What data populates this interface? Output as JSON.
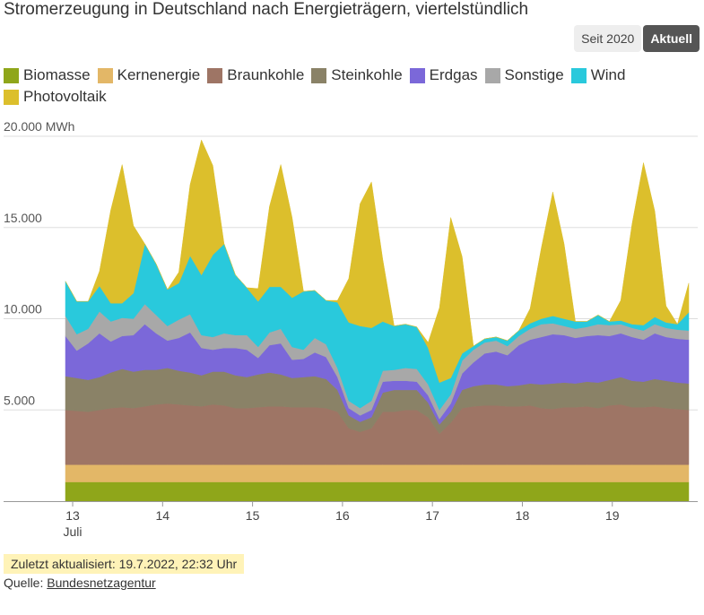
{
  "title": "Stromerzeugung in Deutschland nach Energieträgern, viertelstündlich",
  "toggle": {
    "left_label": "Seit 2020",
    "right_label": "Aktuell",
    "active": "right"
  },
  "footer": {
    "updated": "Zuletzt aktualisiert: 19.7.2022, 22:32 Uhr",
    "source_prefix": "Quelle: ",
    "source_link": "Bundesnetzagentur"
  },
  "chart_data": {
    "type": "area",
    "stacked": true,
    "ylabel_top": "20.000 MWh",
    "yticks": [
      {
        "value": 5000,
        "label": "5.000"
      },
      {
        "value": 10000,
        "label": "10.000"
      },
      {
        "value": 15000,
        "label": "15.000"
      },
      {
        "value": 20000,
        "label": "20.000 MWh"
      }
    ],
    "ylim": [
      0,
      20000
    ],
    "grid": true,
    "legend": "top",
    "xticks": [
      {
        "day": 13,
        "label": "13",
        "sub": "Juli"
      },
      {
        "day": 14,
        "label": "14"
      },
      {
        "day": 15,
        "label": "15"
      },
      {
        "day": 16,
        "label": "16"
      },
      {
        "day": 17,
        "label": "17"
      },
      {
        "day": 18,
        "label": "18"
      },
      {
        "day": 19,
        "label": "19"
      }
    ],
    "x_range_days": [
      12.92,
      19.85
    ],
    "x_hours": [
      0,
      3,
      6,
      9,
      12,
      15,
      18,
      21,
      24,
      27,
      30,
      33,
      36,
      39,
      42,
      45,
      48,
      51,
      54,
      57,
      60,
      63,
      66,
      69,
      72,
      75,
      78,
      81,
      84,
      87,
      90,
      93,
      96,
      99,
      102,
      105,
      108,
      111,
      114,
      117,
      120,
      123,
      126,
      129,
      132,
      135,
      138,
      141,
      144,
      147,
      150,
      153,
      156,
      159,
      162,
      165
    ],
    "series": [
      {
        "name": "Biomasse",
        "color": "#8fa61a",
        "values": [
          1050,
          1050,
          1050,
          1050,
          1050,
          1050,
          1050,
          1050,
          1050,
          1050,
          1050,
          1050,
          1050,
          1050,
          1050,
          1050,
          1050,
          1050,
          1050,
          1050,
          1050,
          1050,
          1050,
          1050,
          1050,
          1050,
          1050,
          1050,
          1050,
          1050,
          1050,
          1050,
          1050,
          1050,
          1050,
          1050,
          1050,
          1050,
          1050,
          1050,
          1050,
          1050,
          1050,
          1050,
          1050,
          1050,
          1050,
          1050,
          1050,
          1050,
          1050,
          1050,
          1050,
          1050,
          1050,
          1050
        ]
      },
      {
        "name": "Kernenergie",
        "color": "#e3b767",
        "values": [
          950,
          950,
          950,
          950,
          950,
          950,
          950,
          950,
          950,
          950,
          950,
          950,
          950,
          950,
          950,
          950,
          950,
          950,
          950,
          950,
          950,
          950,
          950,
          950,
          950,
          950,
          950,
          950,
          950,
          950,
          950,
          950,
          950,
          950,
          950,
          950,
          950,
          950,
          950,
          950,
          950,
          950,
          950,
          950,
          950,
          950,
          950,
          950,
          950,
          950,
          950,
          950,
          950,
          950,
          950,
          950
        ]
      },
      {
        "name": "Braunkohle",
        "color": "#9e7565",
        "values": [
          3000,
          2950,
          2900,
          3000,
          3100,
          3150,
          3100,
          3200,
          3300,
          3350,
          3300,
          3250,
          3200,
          3300,
          3250,
          3100,
          3100,
          3150,
          3200,
          3200,
          3150,
          3150,
          3150,
          3100,
          2900,
          2000,
          1800,
          2000,
          2900,
          2900,
          3000,
          3000,
          2600,
          1700,
          2300,
          3100,
          3200,
          3250,
          3250,
          3200,
          3200,
          3250,
          3100,
          3050,
          3150,
          3150,
          3200,
          3100,
          3250,
          3300,
          3150,
          3150,
          3200,
          3100,
          3050,
          3000
        ]
      },
      {
        "name": "Steinkohle",
        "color": "#8a8267",
        "values": [
          1850,
          1800,
          1750,
          1800,
          1950,
          2100,
          2000,
          2000,
          1900,
          1950,
          1850,
          1800,
          1700,
          1800,
          1850,
          1800,
          1700,
          1800,
          1850,
          1750,
          1600,
          1650,
          1700,
          1600,
          1200,
          700,
          550,
          600,
          1050,
          1200,
          1100,
          1100,
          800,
          500,
          600,
          1000,
          1100,
          1150,
          1150,
          1100,
          1150,
          1200,
          1300,
          1400,
          1350,
          1300,
          1350,
          1400,
          1400,
          1500,
          1450,
          1400,
          1500,
          1500,
          1450,
          1450
        ]
      },
      {
        "name": "Erdgas",
        "color": "#7b68d9",
        "values": [
          2200,
          1500,
          2000,
          2400,
          1700,
          1800,
          2000,
          2500,
          2000,
          1500,
          1800,
          2200,
          1500,
          1200,
          1300,
          1500,
          1500,
          900,
          1500,
          1700,
          1000,
          1000,
          1300,
          1200,
          700,
          400,
          350,
          400,
          600,
          500,
          500,
          450,
          400,
          300,
          450,
          900,
          1300,
          1700,
          1800,
          1700,
          2200,
          2400,
          2600,
          2700,
          2600,
          2500,
          2500,
          2600,
          2400,
          2400,
          2400,
          2300,
          2500,
          2400,
          2400,
          2400
        ]
      },
      {
        "name": "Sonstige",
        "color": "#a8a8a8",
        "values": [
          1100,
          900,
          800,
          1200,
          1100,
          1000,
          900,
          1100,
          1000,
          800,
          1000,
          1000,
          700,
          700,
          800,
          700,
          800,
          600,
          700,
          800,
          700,
          500,
          800,
          700,
          500,
          400,
          400,
          500,
          600,
          600,
          700,
          700,
          600,
          500,
          500,
          700,
          700,
          600,
          600,
          500,
          500,
          600,
          700,
          600,
          500,
          500,
          500,
          600,
          600,
          500,
          500,
          500,
          500,
          500,
          500,
          500
        ]
      },
      {
        "name": "Wind",
        "color": "#29c9dc",
        "values": [
          1900,
          1800,
          1500,
          1400,
          1000,
          800,
          1400,
          3300,
          2800,
          2000,
          2000,
          3200,
          3300,
          4500,
          4900,
          3300,
          2600,
          2500,
          2500,
          2300,
          2700,
          3200,
          2600,
          2400,
          3600,
          4300,
          4500,
          4000,
          2700,
          2400,
          2400,
          2300,
          2000,
          1500,
          900,
          400,
          200,
          200,
          200,
          300,
          300,
          300,
          300,
          400,
          400,
          400,
          300,
          500,
          200,
          200,
          200,
          300,
          400,
          300,
          300,
          1000
        ]
      },
      {
        "name": "Photovoltaik",
        "color": "#dcbf2c",
        "values": [
          0,
          0,
          0,
          800,
          5100,
          7600,
          3700,
          0,
          0,
          0,
          600,
          3900,
          7400,
          4900,
          0,
          0,
          0,
          700,
          4400,
          6700,
          4400,
          0,
          0,
          0,
          100,
          2400,
          6700,
          8000,
          3400,
          0,
          0,
          0,
          300,
          4100,
          8800,
          5300,
          0,
          0,
          0,
          0,
          0,
          800,
          3900,
          6800,
          4100,
          0,
          0,
          0,
          0,
          1100,
          5500,
          8900,
          5800,
          900,
          0,
          1600
        ]
      }
    ]
  }
}
